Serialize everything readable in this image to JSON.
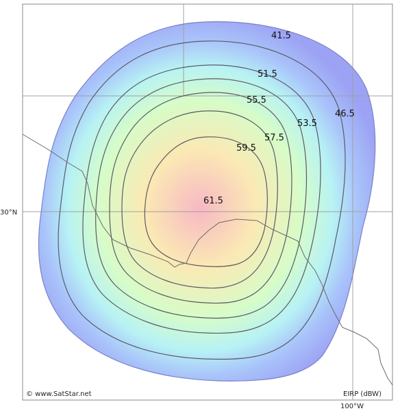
{
  "map": {
    "credit": "© www.SatStar.net",
    "legend_unit": "EIRP (dBW)",
    "latitude_label": "30°N",
    "longitude_label": "100°W",
    "contours": [
      {
        "label": "41.5",
        "color": "#9fa6f6"
      },
      {
        "label": "46.5",
        "color": "#a9c6fa"
      },
      {
        "label": "51.5",
        "color": "#b8f0f4"
      },
      {
        "label": "53.5",
        "color": "#c8fbd8"
      },
      {
        "label": "55.5",
        "color": "#e7ffbf"
      },
      {
        "label": "57.5",
        "color": "#fdf6b6"
      },
      {
        "label": "59.5",
        "color": "#fde0c0"
      },
      {
        "label": "61.5",
        "color": "#fbc6cc"
      }
    ]
  }
}
